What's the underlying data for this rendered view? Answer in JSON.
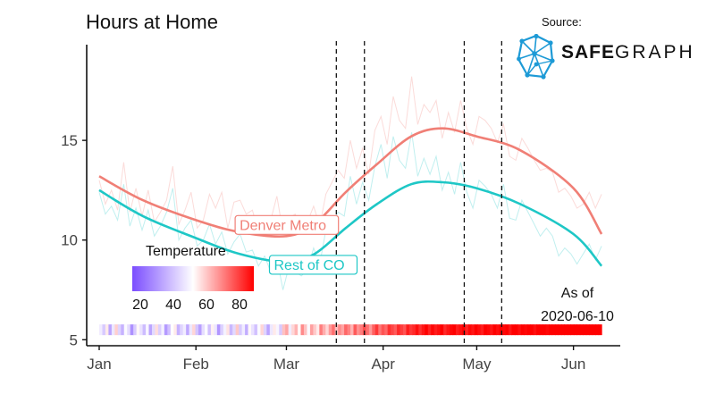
{
  "title": "Hours at Home",
  "source": {
    "label": "Source:",
    "brand_bold": "SAFE",
    "brand_light": "GRAPH"
  },
  "as_of": {
    "line1": "As of",
    "line2": "2020-06-10"
  },
  "temperature_legend": {
    "title": "Temperature",
    "ticks": [
      "20",
      "40",
      "60",
      "80"
    ],
    "range": [
      12,
      86
    ],
    "colors": {
      "low": "#7b4dff",
      "mid": "#ffffff",
      "high": "#ff0000"
    }
  },
  "chart_data": {
    "type": "line",
    "title": "Hours at Home",
    "xlabel": "",
    "ylabel": "",
    "xlim": [
      "2020-01-01",
      "2020-06-16"
    ],
    "ylim": [
      4.7,
      19.8
    ],
    "yticks": [
      5,
      10,
      15
    ],
    "ytick_labels": [
      "5",
      "10",
      "15"
    ],
    "xticks": [
      "2020-01-01",
      "2020-02-01",
      "2020-03-01",
      "2020-04-01",
      "2020-05-01",
      "2020-06-01"
    ],
    "xtick_labels": [
      "Jan",
      "Feb",
      "Mar",
      "Apr",
      "May",
      "Jun"
    ],
    "grid": false,
    "vlines": [
      "2020-03-17",
      "2020-03-26",
      "2020-04-27",
      "2020-05-09"
    ],
    "series": [
      {
        "name": "Denver Metro",
        "color": "#f07f76",
        "smooth": [
          [
            "2020-01-01",
            13.2
          ],
          [
            "2020-01-15",
            12.0
          ],
          [
            "2020-02-01",
            11.0
          ],
          [
            "2020-02-15",
            10.4
          ],
          [
            "2020-03-01",
            10.2
          ],
          [
            "2020-03-10",
            10.8
          ],
          [
            "2020-03-20",
            12.4
          ],
          [
            "2020-03-30",
            13.8
          ],
          [
            "2020-04-10",
            15.2
          ],
          [
            "2020-04-20",
            15.6
          ],
          [
            "2020-05-01",
            15.2
          ],
          [
            "2020-05-15",
            14.5
          ],
          [
            "2020-06-01",
            12.6
          ],
          [
            "2020-06-10",
            10.3
          ]
        ],
        "daily": [
          13.0,
          11.8,
          12.5,
          11.5,
          13.9,
          11.4,
          12.6,
          11.2,
          12.5,
          10.9,
          11.4,
          12.0,
          13.7,
          10.8,
          11.5,
          12.4,
          10.6,
          11.0,
          12.3,
          11.6,
          12.4,
          10.6,
          11.9,
          12.0,
          11.3,
          11.5,
          10.4,
          11.1,
          11.0,
          12.2,
          10.4,
          11.1,
          11.3,
          10.4,
          10.9,
          11.7,
          10.7,
          12.3,
          12.9,
          13.5,
          13.1,
          15.0,
          13.6,
          14.6,
          13.3,
          15.5,
          16.2,
          14.8,
          17.2,
          16.0,
          15.6,
          18.2,
          15.8,
          16.8,
          16.4,
          17.0,
          15.1,
          16.4,
          15.4,
          17.0,
          15.6,
          14.8,
          16.2,
          16.0,
          15.6,
          14.9,
          15.8,
          14.2,
          14.0,
          15.1,
          14.6,
          14.0,
          13.5,
          13.6,
          13.4,
          12.4,
          12.6,
          12.2,
          11.6,
          11.8,
          12.4,
          11.6,
          12.3
        ]
      },
      {
        "name": "Rest of CO",
        "color": "#1ec7c6",
        "smooth": [
          [
            "2020-01-01",
            12.5
          ],
          [
            "2020-01-15",
            11.2
          ],
          [
            "2020-02-01",
            10.1
          ],
          [
            "2020-02-15",
            9.3
          ],
          [
            "2020-03-01",
            8.9
          ],
          [
            "2020-03-10",
            9.3
          ],
          [
            "2020-03-20",
            10.6
          ],
          [
            "2020-03-30",
            11.8
          ],
          [
            "2020-04-10",
            12.8
          ],
          [
            "2020-04-20",
            12.9
          ],
          [
            "2020-05-01",
            12.6
          ],
          [
            "2020-05-15",
            11.8
          ],
          [
            "2020-06-01",
            10.3
          ],
          [
            "2020-06-10",
            8.7
          ]
        ],
        "daily": [
          12.4,
          11.3,
          11.7,
          11.0,
          12.8,
          10.7,
          11.6,
          10.5,
          11.5,
          10.2,
          10.7,
          11.4,
          12.6,
          10.0,
          10.6,
          11.0,
          9.7,
          10.0,
          10.8,
          9.8,
          10.4,
          9.3,
          9.9,
          10.3,
          9.4,
          9.5,
          8.7,
          9.2,
          8.4,
          9.1,
          7.5,
          8.7,
          8.4,
          8.2,
          8.5,
          9.6,
          8.8,
          10.5,
          10.8,
          11.4,
          11.2,
          13.2,
          11.8,
          12.9,
          12.0,
          13.7,
          14.8,
          13.1,
          15.2,
          14.0,
          13.6,
          15.4,
          13.2,
          14.1,
          13.3,
          14.2,
          12.5,
          13.4,
          12.3,
          13.9,
          12.4,
          11.6,
          13.0,
          12.7,
          12.3,
          11.6,
          12.8,
          11.1,
          11.0,
          12.0,
          11.4,
          10.8,
          10.2,
          10.6,
          10.2,
          9.2,
          9.6,
          9.3,
          8.8,
          9.3,
          9.8,
          9.0,
          9.7
        ]
      }
    ],
    "temperature_strip": {
      "y": 5.5,
      "start": "2020-01-01",
      "end": "2020-06-10",
      "values": [
        45,
        38,
        52,
        30,
        44,
        56,
        40,
        33,
        48,
        42,
        26,
        38,
        50,
        43,
        35,
        47,
        30,
        41,
        54,
        39,
        46,
        28,
        36,
        49,
        52,
        33,
        40,
        45,
        31,
        44,
        55,
        37,
        29,
        42,
        48,
        36,
        51,
        44,
        27,
        39,
        46,
        53,
        34,
        41,
        57,
        38,
        45,
        32,
        50,
        43,
        36,
        48,
        55,
        40,
        30,
        44,
        52,
        47,
        38,
        58,
        62,
        45,
        55,
        60,
        50,
        66,
        58,
        48,
        63,
        57,
        52,
        68,
        61,
        55,
        64,
        70,
        59,
        66,
        62,
        71,
        67,
        60,
        73,
        65,
        68,
        75,
        70,
        64,
        72,
        78,
        69,
        74,
        71,
        79,
        76,
        73,
        80,
        77,
        74,
        82,
        78,
        80,
        84,
        79,
        83,
        86,
        81,
        85,
        82,
        84,
        86,
        80,
        83,
        85,
        87,
        82,
        84,
        86,
        81,
        85,
        83,
        87,
        84,
        82,
        86,
        85,
        83,
        88,
        84,
        86,
        85,
        87,
        83,
        86,
        88,
        84,
        87,
        85,
        86,
        88,
        84,
        87,
        86,
        88,
        85,
        87,
        86,
        88,
        89,
        86,
        88,
        87,
        89,
        86,
        88,
        90,
        87,
        89,
        88,
        86,
        89,
        90
      ]
    }
  }
}
